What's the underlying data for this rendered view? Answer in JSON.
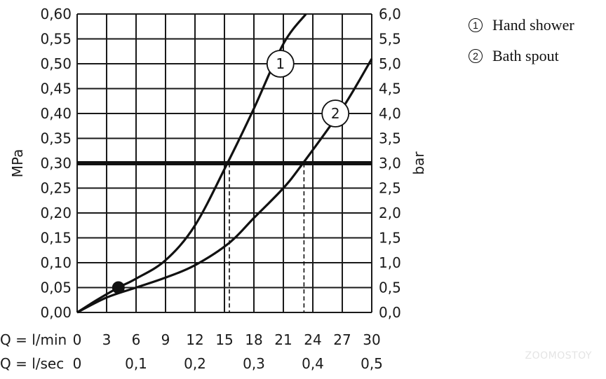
{
  "chart_data": {
    "type": "line",
    "title": "",
    "ylabel_left": "MPa",
    "ylabel_right": "bar",
    "ylim": [
      0,
      0.6
    ],
    "xlim": [
      0,
      30
    ],
    "y_left_ticks": [
      "0,00",
      "0,05",
      "0,10",
      "0,15",
      "0,20",
      "0,25",
      "0,30",
      "0,35",
      "0,40",
      "0,45",
      "0,50",
      "0,55",
      "0,60"
    ],
    "y_right_ticks": [
      "0,0",
      "0,5",
      "1,0",
      "1,5",
      "2,0",
      "2,5",
      "3,0",
      "3,5",
      "4,0",
      "4,5",
      "5,0",
      "5,5",
      "6,0"
    ],
    "x_row1_label": "Q = l/min",
    "x_row1_ticks": [
      "0",
      "3",
      "6",
      "9",
      "12",
      "15",
      "18",
      "21",
      "24",
      "27",
      "30"
    ],
    "x_row2_label": "Q = l/sec",
    "x_row2_ticks": [
      {
        "value": 0,
        "label": "0"
      },
      {
        "value": 6,
        "label": "0,1"
      },
      {
        "value": 12,
        "label": "0,2"
      },
      {
        "value": 18,
        "label": "0,3"
      },
      {
        "value": 24,
        "label": "0,4"
      },
      {
        "value": 30,
        "label": "0,5"
      }
    ],
    "grid": true,
    "series": [
      {
        "name": "1",
        "x": [
          0,
          2,
          4.2,
          6,
          9,
          12,
          15.3,
          18,
          21,
          23.3
        ],
        "y": [
          0,
          0.025,
          0.05,
          0.068,
          0.105,
          0.175,
          0.3,
          0.41,
          0.54,
          0.6
        ]
      },
      {
        "name": "2",
        "x": [
          0,
          3,
          6,
          9,
          12,
          15.5,
          18,
          21,
          23,
          27,
          30
        ],
        "y": [
          0,
          0.03,
          0.05,
          0.07,
          0.095,
          0.14,
          0.19,
          0.25,
          0.3,
          0.41,
          0.51
        ]
      }
    ],
    "series_label_positions": [
      {
        "label": "1",
        "x": 20.7,
        "y": 0.5
      },
      {
        "label": "2",
        "x": 26.3,
        "y": 0.4
      }
    ],
    "reference_line": {
      "y": 0.3
    },
    "drop_lines": [
      15.5,
      23.1
    ],
    "operating_point": {
      "x": 4.2,
      "y": 0.05
    }
  },
  "legend": {
    "items": [
      {
        "number": "1",
        "label": "Hand shower"
      },
      {
        "number": "2",
        "label": "Bath spout"
      }
    ]
  },
  "watermark": "ZOOMOSTOY"
}
